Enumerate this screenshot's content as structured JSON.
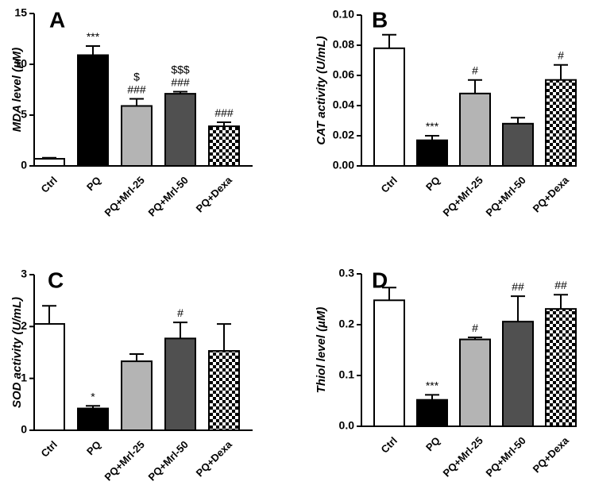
{
  "chart_data": [
    {
      "panel": "A",
      "type": "bar",
      "ylabel_prefix": "MDA level (",
      "ylabel_unit": "µM",
      "ylabel_suffix": ")",
      "ylim": [
        0,
        15
      ],
      "yticks": [
        0,
        5,
        10,
        15
      ],
      "categories": [
        "Ctrl",
        "PQ",
        "PQ+Mrl-25",
        "PQ+Mrl-50",
        "PQ+Dexa"
      ],
      "values": [
        0.7,
        10.9,
        5.9,
        7.1,
        3.9
      ],
      "errors": [
        0.1,
        0.9,
        0.7,
        0.2,
        0.4
      ],
      "annotations": [
        [],
        [
          "***"
        ],
        [
          "$",
          "###"
        ],
        [
          "$$$",
          "###"
        ],
        [
          "###"
        ]
      ]
    },
    {
      "panel": "B",
      "type": "bar",
      "ylabel_prefix": "CAT activity (U/mL)",
      "ylabel_unit": "",
      "ylabel_suffix": "",
      "ylim": [
        0,
        0.1
      ],
      "yticks": [
        "0.00",
        "0.02",
        "0.04",
        "0.06",
        "0.08",
        "0.10"
      ],
      "categories": [
        "Ctrl",
        "PQ",
        "PQ+Mrl-25",
        "PQ+Mrl-50",
        "PQ+Dexa"
      ],
      "values": [
        0.078,
        0.017,
        0.048,
        0.028,
        0.057
      ],
      "errors": [
        0.009,
        0.003,
        0.009,
        0.004,
        0.01
      ],
      "annotations": [
        [],
        [
          "***"
        ],
        [
          "#"
        ],
        [],
        [
          "#"
        ]
      ]
    },
    {
      "panel": "C",
      "type": "bar",
      "ylabel_prefix": "SOD activity (U/mL)",
      "ylabel_unit": "",
      "ylabel_suffix": "",
      "ylim": [
        0,
        3
      ],
      "yticks": [
        0,
        1,
        2,
        3
      ],
      "categories": [
        "Ctrl",
        "PQ",
        "PQ+Mrl-25",
        "PQ+Mrl-50",
        "PQ+Dexa"
      ],
      "values": [
        2.05,
        0.42,
        1.33,
        1.77,
        1.53
      ],
      "errors": [
        0.35,
        0.05,
        0.14,
        0.31,
        0.52
      ],
      "annotations": [
        [],
        [
          "*"
        ],
        [],
        [
          "#"
        ],
        []
      ]
    },
    {
      "panel": "D",
      "type": "bar",
      "ylabel_prefix": "Thiol level (",
      "ylabel_unit": "µM",
      "ylabel_suffix": ")",
      "ylim": [
        0,
        0.3
      ],
      "yticks": [
        "0.0",
        "0.1",
        "0.2",
        "0.3"
      ],
      "categories": [
        "Ctrl",
        "PQ",
        "PQ+Mrl-25",
        "PQ+Mrl-50",
        "PQ+Dexa"
      ],
      "values": [
        0.248,
        0.052,
        0.171,
        0.206,
        0.231
      ],
      "errors": [
        0.025,
        0.01,
        0.004,
        0.05,
        0.028
      ],
      "annotations": [
        [],
        [
          "***"
        ],
        [
          "#"
        ],
        [
          "##"
        ],
        [
          "##"
        ]
      ]
    }
  ],
  "bar_fills": [
    "#ffffff",
    "#000000",
    "#b4b4b4",
    "#505050",
    "checker"
  ]
}
